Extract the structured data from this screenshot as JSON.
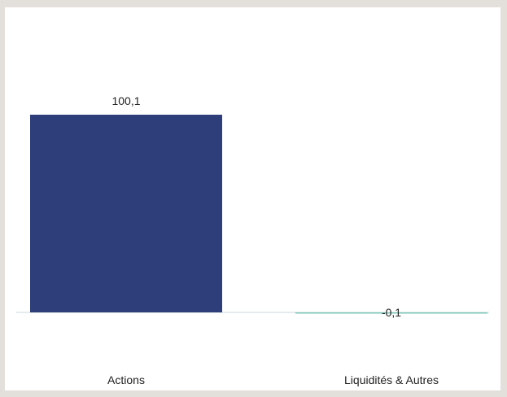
{
  "chart_data": {
    "type": "bar",
    "categories": [
      "Actions",
      "Liquidités & Autres"
    ],
    "values": [
      100.1,
      -0.1
    ],
    "value_labels": [
      "100,1",
      "-0,1"
    ],
    "colors": [
      "#2d3e7b",
      "#7ec8b8"
    ],
    "baseline_color": "#c9d6dc",
    "title": "",
    "xlabel": "",
    "ylabel": "",
    "ylim": [
      -0.1,
      100.1
    ],
    "grid": false,
    "legend": "none"
  }
}
